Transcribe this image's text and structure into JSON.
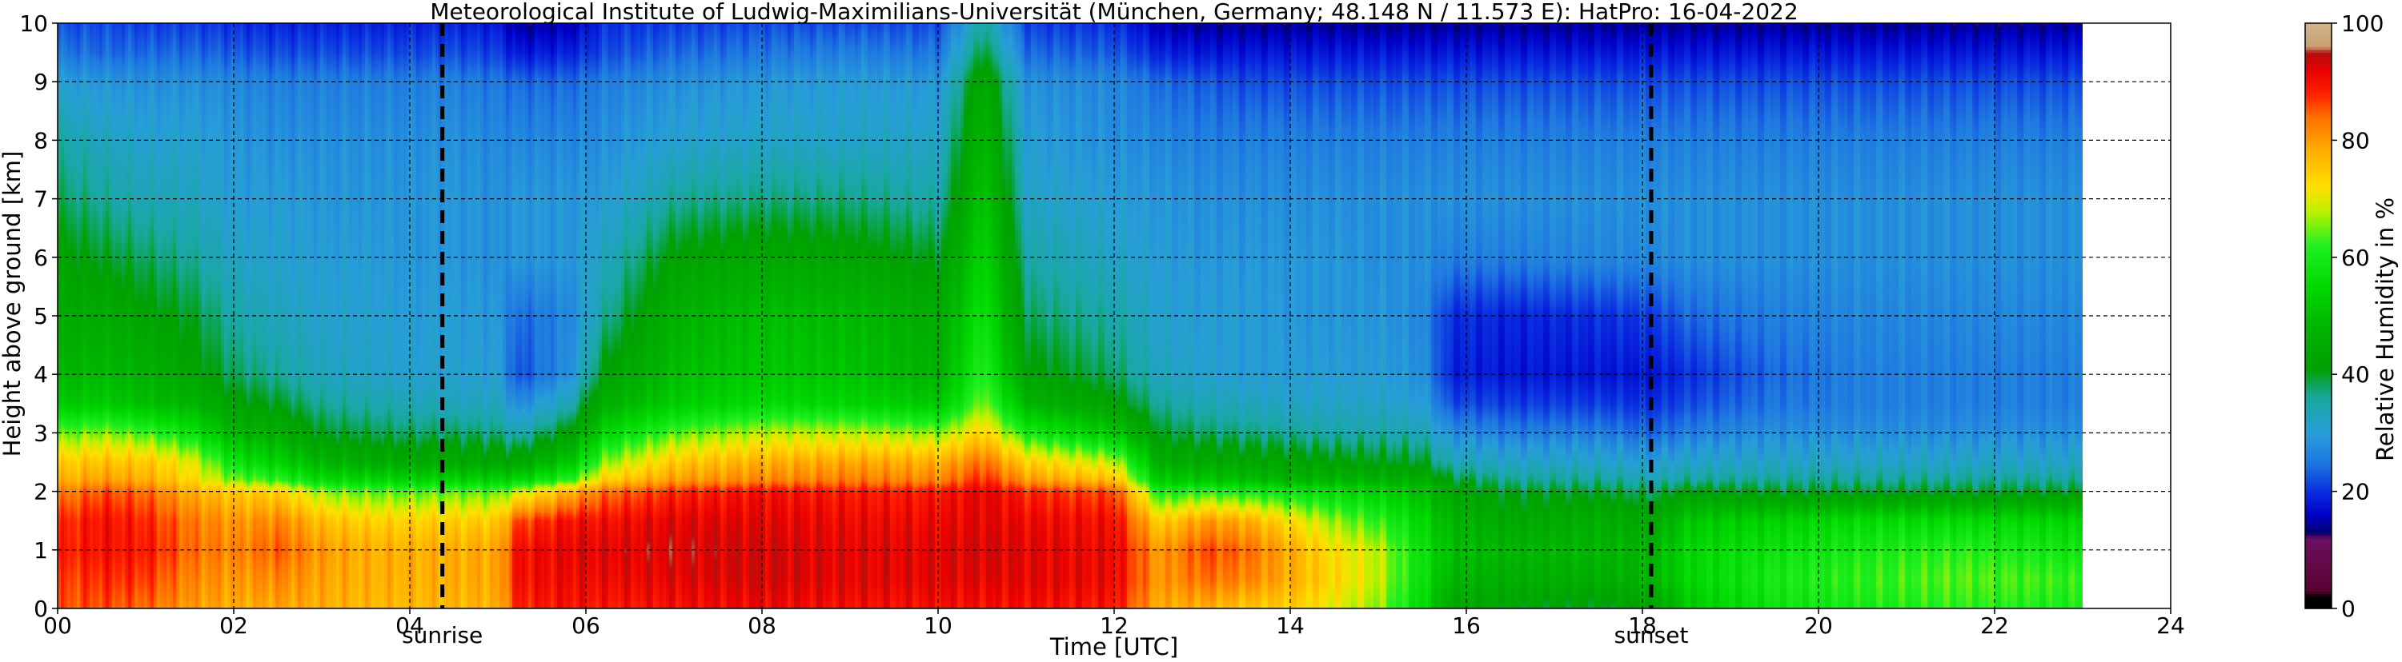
{
  "chart_data": {
    "type": "heatmap",
    "title": "Meteorological Institute of Ludwig-Maximilians-Universität (München, Germany; 48.148 N / 11.573 E):    HatPro: 16-04-2022",
    "xlabel": "Time [UTC]",
    "ylabel": "Height above ground [km]",
    "colorbar_label": "Relative Humidity in %",
    "xlim": [
      0,
      24
    ],
    "ylim": [
      0,
      10
    ],
    "x_ticks": [
      {
        "value": 0,
        "label": "00"
      },
      {
        "value": 2,
        "label": "02"
      },
      {
        "value": 4,
        "label": "04"
      },
      {
        "value": 6,
        "label": "06"
      },
      {
        "value": 8,
        "label": "08"
      },
      {
        "value": 10,
        "label": "10"
      },
      {
        "value": 12,
        "label": "12"
      },
      {
        "value": 14,
        "label": "14"
      },
      {
        "value": 16,
        "label": "16"
      },
      {
        "value": 18,
        "label": "18"
      },
      {
        "value": 20,
        "label": "20"
      },
      {
        "value": 22,
        "label": "22"
      },
      {
        "value": 24,
        "label": "24"
      }
    ],
    "y_ticks": [
      {
        "value": 0,
        "label": "0"
      },
      {
        "value": 1,
        "label": "1"
      },
      {
        "value": 2,
        "label": "2"
      },
      {
        "value": 3,
        "label": "3"
      },
      {
        "value": 4,
        "label": "4"
      },
      {
        "value": 5,
        "label": "5"
      },
      {
        "value": 6,
        "label": "6"
      },
      {
        "value": 7,
        "label": "7"
      },
      {
        "value": 8,
        "label": "8"
      },
      {
        "value": 9,
        "label": "9"
      },
      {
        "value": 10,
        "label": "10"
      }
    ],
    "colorbar_ticks": [
      {
        "value": 0,
        "label": "0"
      },
      {
        "value": 20,
        "label": "20"
      },
      {
        "value": 40,
        "label": "40"
      },
      {
        "value": 60,
        "label": "60"
      },
      {
        "value": 80,
        "label": "80"
      },
      {
        "value": 100,
        "label": "100"
      }
    ],
    "colorbar_range": [
      0,
      100
    ],
    "data_end_time": 23.0,
    "annotations": [
      {
        "label": "sunrise",
        "time": 4.37
      },
      {
        "label": "sunset",
        "time": 18.1
      }
    ],
    "grid": true,
    "colorscale": [
      {
        "value": 0,
        "color": "#000000"
      },
      {
        "value": 2,
        "color": "#000000"
      },
      {
        "value": 3,
        "color": "#5a0030"
      },
      {
        "value": 12,
        "color": "#6a1060"
      },
      {
        "value": 13,
        "color": "#000070"
      },
      {
        "value": 16,
        "color": "#0000c8"
      },
      {
        "value": 20,
        "color": "#0a2ee0"
      },
      {
        "value": 25,
        "color": "#1f78e0"
      },
      {
        "value": 30,
        "color": "#289ed8"
      },
      {
        "value": 36,
        "color": "#18a8a0"
      },
      {
        "value": 41,
        "color": "#00a000"
      },
      {
        "value": 48,
        "color": "#00b400"
      },
      {
        "value": 55,
        "color": "#00d800"
      },
      {
        "value": 62,
        "color": "#20f020"
      },
      {
        "value": 68,
        "color": "#c0f000"
      },
      {
        "value": 72,
        "color": "#ffe000"
      },
      {
        "value": 78,
        "color": "#ffb000"
      },
      {
        "value": 84,
        "color": "#ff7000"
      },
      {
        "value": 88,
        "color": "#ff2000"
      },
      {
        "value": 92,
        "color": "#e80000"
      },
      {
        "value": 95,
        "color": "#b01010"
      },
      {
        "value": 96,
        "color": "#c8a070"
      },
      {
        "value": 100,
        "color": "#d2b48c"
      }
    ],
    "heights_km": [
      0,
      0.5,
      1,
      1.5,
      2,
      2.2,
      2.5,
      3,
      3.5,
      4,
      5,
      6,
      7,
      8,
      9,
      9.5,
      10
    ],
    "humidity_profiles": [
      {
        "time": 0.0,
        "rh": [
          85,
          86,
          88,
          87,
          82,
          77,
          74,
          64,
          52,
          48,
          44,
          42,
          38,
          35,
          30,
          25,
          22
        ]
      },
      {
        "time": 0.5,
        "rh": [
          86,
          88,
          90,
          90,
          86,
          80,
          76,
          66,
          53,
          49,
          45,
          40,
          36,
          33,
          29,
          24,
          22
        ]
      },
      {
        "time": 1.0,
        "rh": [
          84,
          87,
          89,
          88,
          84,
          78,
          75,
          63,
          50,
          47,
          42,
          38,
          34,
          31,
          28,
          24,
          21
        ]
      },
      {
        "time": 1.5,
        "rh": [
          80,
          82,
          84,
          83,
          78,
          73,
          70,
          58,
          48,
          43,
          40,
          36,
          33,
          31,
          28,
          24,
          21
        ]
      },
      {
        "time": 2.0,
        "rh": [
          78,
          80,
          82,
          80,
          75,
          65,
          58,
          48,
          42,
          38,
          35,
          32,
          30,
          29,
          27,
          23,
          20
        ]
      },
      {
        "time": 2.5,
        "rh": [
          79,
          82,
          85,
          82,
          74,
          62,
          54,
          46,
          40,
          36,
          33,
          31,
          30,
          28,
          26,
          22,
          19
        ]
      },
      {
        "time": 3.0,
        "rh": [
          78,
          79,
          80,
          76,
          66,
          56,
          48,
          40,
          36,
          33,
          31,
          30,
          29,
          28,
          26,
          22,
          19
        ]
      },
      {
        "time": 3.5,
        "rh": [
          77,
          78,
          78,
          74,
          64,
          55,
          46,
          39,
          35,
          32,
          31,
          30,
          29,
          28,
          26,
          22,
          19
        ]
      },
      {
        "time": 4.0,
        "rh": [
          77,
          78,
          78,
          74,
          64,
          55,
          45,
          38,
          34,
          31,
          30,
          29,
          29,
          28,
          26,
          22,
          19
        ]
      },
      {
        "time": 4.5,
        "rh": [
          77,
          78,
          78,
          74,
          64,
          54,
          45,
          38,
          33,
          31,
          30,
          29,
          29,
          28,
          26,
          22,
          19
        ]
      },
      {
        "time": 5.0,
        "rh": [
          78,
          79,
          79,
          75,
          64,
          54,
          44,
          37,
          33,
          30,
          29,
          28,
          28,
          27,
          25,
          21,
          18
        ]
      },
      {
        "time": 5.2,
        "rh": [
          88,
          90,
          90,
          86,
          68,
          55,
          44,
          34,
          27,
          22,
          24,
          29,
          29,
          27,
          24,
          18,
          14
        ]
      },
      {
        "time": 5.8,
        "rh": [
          90,
          91,
          92,
          90,
          78,
          62,
          52,
          42,
          34,
          28,
          27,
          29,
          29,
          27,
          24,
          19,
          15
        ]
      },
      {
        "time": 6.2,
        "rh": [
          89,
          91,
          92,
          90,
          84,
          74,
          66,
          55,
          47,
          42,
          36,
          33,
          30,
          28,
          26,
          22,
          20
        ]
      },
      {
        "time": 7.0,
        "rh": [
          90,
          92,
          93,
          92,
          88,
          80,
          75,
          64,
          53,
          50,
          47,
          42,
          36,
          31,
          28,
          24,
          21
        ]
      },
      {
        "time": 8.0,
        "rh": [
          91,
          93,
          93,
          92,
          90,
          82,
          78,
          68,
          56,
          52,
          50,
          44,
          37,
          32,
          29,
          25,
          22
        ]
      },
      {
        "time": 9.0,
        "rh": [
          90,
          92,
          92,
          91,
          89,
          83,
          79,
          68,
          55,
          51,
          49,
          43,
          37,
          32,
          30,
          26,
          22
        ]
      },
      {
        "time": 10.0,
        "rh": [
          90,
          92,
          92,
          91,
          89,
          82,
          78,
          66,
          52,
          47,
          45,
          40,
          35,
          32,
          29,
          25,
          22
        ]
      },
      {
        "time": 10.5,
        "rh": [
          90,
          92,
          93,
          92,
          92,
          88,
          84,
          74,
          66,
          62,
          58,
          55,
          52,
          49,
          45,
          40,
          36
        ]
      },
      {
        "time": 11.0,
        "rh": [
          90,
          92,
          92,
          91,
          88,
          80,
          74,
          60,
          48,
          42,
          38,
          35,
          32,
          30,
          28,
          24,
          21
        ]
      },
      {
        "time": 12.0,
        "rh": [
          89,
          91,
          91,
          90,
          86,
          76,
          68,
          52,
          42,
          38,
          35,
          32,
          30,
          28,
          27,
          23,
          20
        ]
      },
      {
        "time": 12.5,
        "rh": [
          78,
          80,
          80,
          74,
          60,
          52,
          46,
          40,
          36,
          33,
          31,
          30,
          29,
          27,
          24,
          19,
          15
        ]
      },
      {
        "time": 13.0,
        "rh": [
          78,
          84,
          86,
          80,
          62,
          52,
          45,
          38,
          34,
          31,
          30,
          29,
          28,
          26,
          23,
          18,
          14
        ]
      },
      {
        "time": 13.5,
        "rh": [
          75,
          82,
          84,
          78,
          60,
          50,
          44,
          37,
          33,
          30,
          30,
          29,
          28,
          26,
          22,
          18,
          14
        ]
      },
      {
        "time": 14.0,
        "rh": [
          74,
          78,
          78,
          72,
          58,
          48,
          43,
          36,
          32,
          30,
          29,
          29,
          28,
          26,
          22,
          18,
          14
        ]
      },
      {
        "time": 14.5,
        "rh": [
          70,
          73,
          72,
          66,
          56,
          48,
          42,
          35,
          32,
          30,
          29,
          29,
          28,
          26,
          22,
          18,
          14
        ]
      },
      {
        "time": 15.0,
        "rh": [
          66,
          68,
          68,
          62,
          54,
          47,
          41,
          35,
          32,
          30,
          29,
          28,
          28,
          26,
          22,
          18,
          14
        ]
      },
      {
        "time": 15.5,
        "rh": [
          55,
          57,
          57,
          55,
          50,
          46,
          40,
          34,
          30,
          28,
          27,
          28,
          28,
          26,
          22,
          18,
          14
        ]
      },
      {
        "time": 15.8,
        "rh": [
          44,
          48,
          50,
          48,
          44,
          40,
          34,
          28,
          22,
          19,
          20,
          26,
          28,
          26,
          22,
          18,
          14
        ]
      },
      {
        "time": 16.5,
        "rh": [
          42,
          46,
          48,
          44,
          40,
          36,
          32,
          26,
          21,
          18,
          19,
          26,
          28,
          26,
          22,
          18,
          14
        ]
      },
      {
        "time": 17.5,
        "rh": [
          40,
          46,
          48,
          46,
          40,
          36,
          32,
          26,
          21,
          18,
          20,
          27,
          28,
          26,
          22,
          18,
          14
        ]
      },
      {
        "time": 18.1,
        "rh": [
          42,
          48,
          48,
          44,
          38,
          34,
          30,
          24,
          20,
          18,
          21,
          27,
          28,
          26,
          22,
          18,
          14
        ]
      },
      {
        "time": 18.5,
        "rh": [
          52,
          55,
          55,
          52,
          42,
          36,
          32,
          26,
          22,
          20,
          24,
          28,
          28,
          26,
          22,
          18,
          14
        ]
      },
      {
        "time": 19.5,
        "rh": [
          58,
          60,
          58,
          54,
          40,
          36,
          32,
          28,
          25,
          24,
          26,
          28,
          28,
          26,
          22,
          18,
          14
        ]
      },
      {
        "time": 20.5,
        "rh": [
          60,
          62,
          60,
          56,
          40,
          36,
          32,
          28,
          26,
          26,
          27,
          28,
          28,
          26,
          22,
          18,
          14
        ]
      },
      {
        "time": 21.5,
        "rh": [
          62,
          64,
          62,
          56,
          40,
          36,
          32,
          28,
          26,
          26,
          27,
          28,
          28,
          26,
          22,
          18,
          14
        ]
      },
      {
        "time": 22.5,
        "rh": [
          61,
          63,
          60,
          55,
          40,
          36,
          32,
          28,
          26,
          26,
          27,
          28,
          28,
          26,
          22,
          18,
          14
        ]
      },
      {
        "time": 23.0,
        "rh": [
          60,
          62,
          58,
          54,
          40,
          36,
          32,
          28,
          26,
          26,
          27,
          28,
          28,
          26,
          22,
          18,
          14
        ]
      }
    ]
  }
}
